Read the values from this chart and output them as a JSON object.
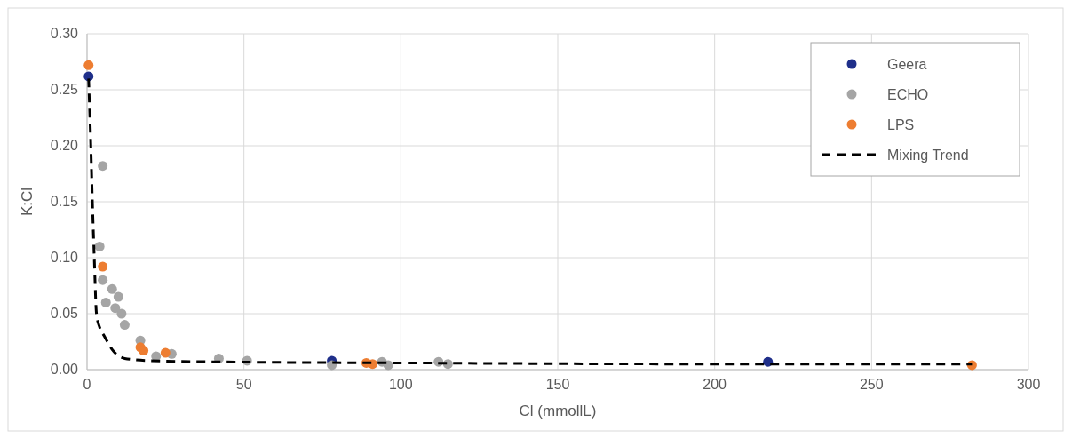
{
  "chart_data": {
    "type": "scatter",
    "xlabel": "Cl (mmollL)",
    "ylabel": "K:Cl",
    "xlim": [
      0,
      300
    ],
    "xticks": [
      0,
      50,
      100,
      150,
      200,
      250,
      300
    ],
    "ylim": [
      0,
      0.3
    ],
    "yticks": [
      {
        "value": 0,
        "label": "0.00"
      },
      {
        "value": 0.05,
        "label": "0.05"
      },
      {
        "value": 0.1,
        "label": "0.10"
      },
      {
        "value": 0.15,
        "label": "0.15"
      },
      {
        "value": 0.2,
        "label": "0.20"
      },
      {
        "value": 0.25,
        "label": "0.25"
      },
      {
        "value": 0.3,
        "label": "0.30"
      }
    ],
    "grid": true,
    "legend": "top right",
    "marker": "circle",
    "series": [
      {
        "name": "Geera",
        "color": "#1f2f8a",
        "x": [
          0.5,
          78,
          217
        ],
        "values": [
          0.262,
          0.008,
          0.007
        ]
      },
      {
        "name": "ECHO",
        "color": "#a5a5a5",
        "x": [
          5,
          4,
          5,
          8,
          10,
          6,
          9,
          11,
          12,
          17,
          22,
          27,
          42,
          51,
          78,
          94,
          96,
          112,
          115
        ],
        "values": [
          0.182,
          0.11,
          0.08,
          0.072,
          0.065,
          0.06,
          0.055,
          0.05,
          0.04,
          0.026,
          0.012,
          0.014,
          0.01,
          0.008,
          0.004,
          0.007,
          0.004,
          0.007,
          0.005
        ]
      },
      {
        "name": "LPS",
        "color": "#ed7d31",
        "x": [
          0.5,
          5,
          17,
          18,
          25,
          89,
          91,
          282
        ],
        "values": [
          0.272,
          0.092,
          0.02,
          0.017,
          0.015,
          0.006,
          0.005,
          0.004
        ]
      },
      {
        "name": "Mixing Trend",
        "type": "line",
        "line_style": "dashed",
        "marker": "none",
        "color": "#000000",
        "x": [
          0.5,
          1.2,
          1.7,
          2.3,
          3,
          4,
          5.5,
          8,
          12,
          20,
          40,
          100,
          200,
          282
        ],
        "values": [
          0.26,
          0.2,
          0.15,
          0.1,
          0.05,
          0.038,
          0.03,
          0.018,
          0.01,
          0.008,
          0.007,
          0.006,
          0.005,
          0.005
        ]
      }
    ]
  }
}
